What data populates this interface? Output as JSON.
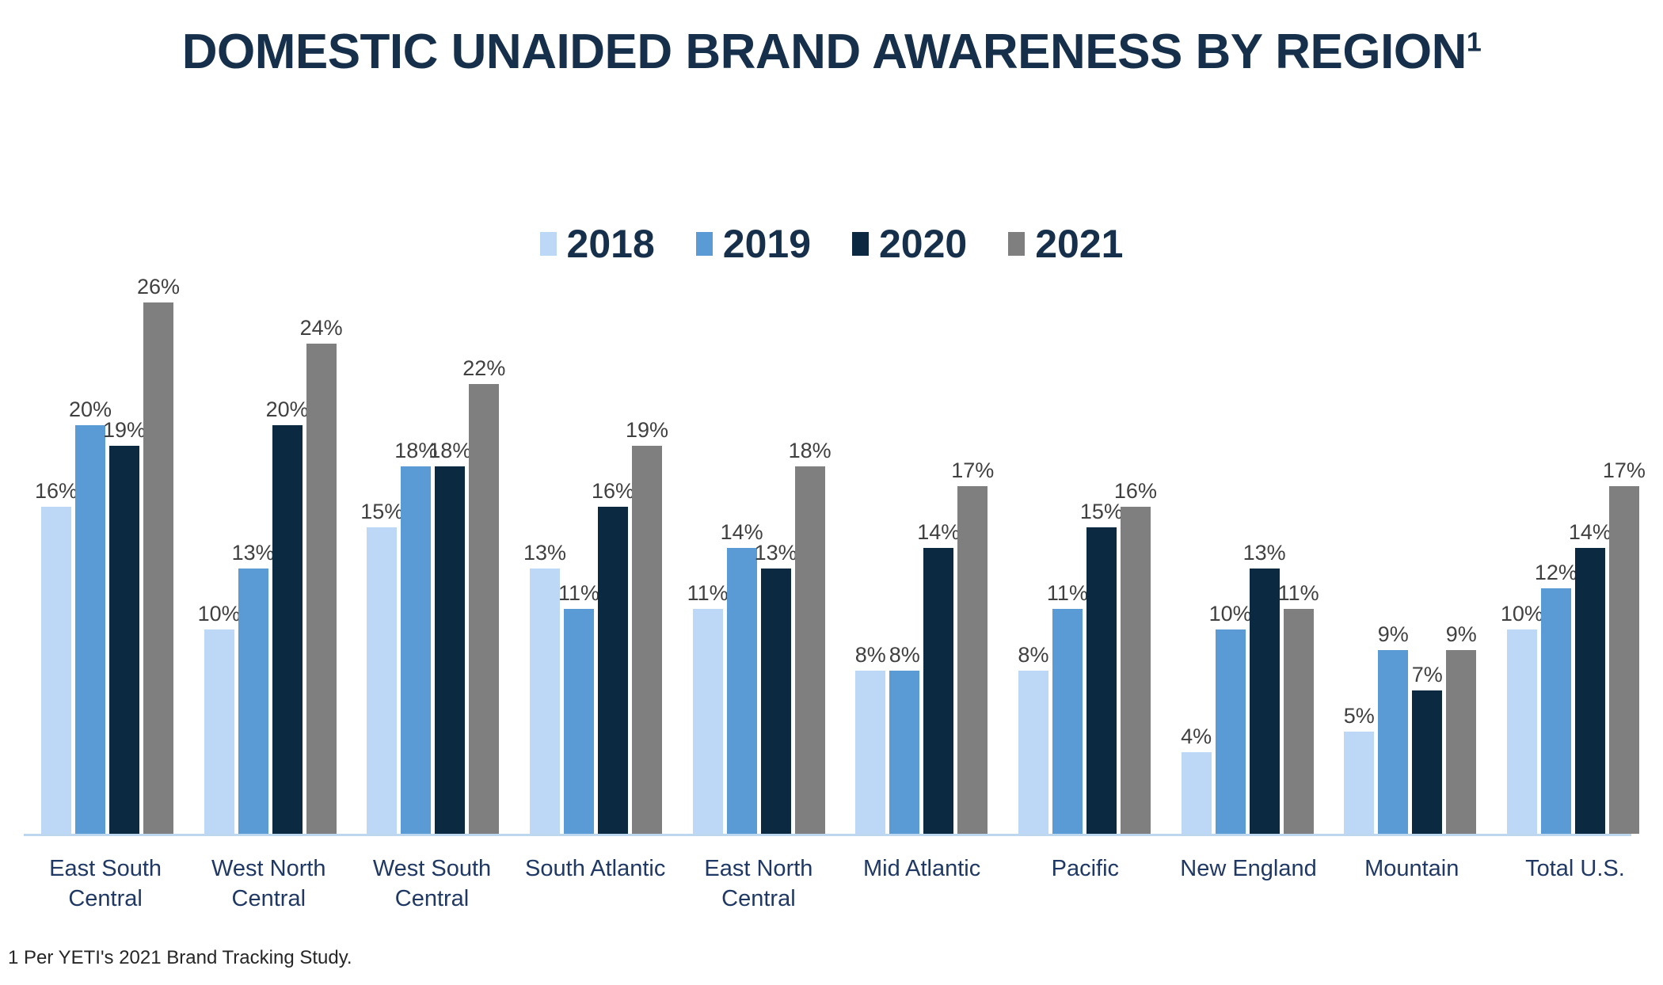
{
  "title": {
    "text": "DOMESTIC UNAIDED BRAND AWARENESS BY REGION",
    "superscript": "1"
  },
  "footnote": "1 Per YETI's 2021 Brand Tracking Study.",
  "colors": {
    "title_text": "#16304b",
    "data_label_text": "#404040",
    "region_label_text": "#1f3864",
    "axis_line": "#bdd7ee",
    "series_2018": "#bdd8f6",
    "series_2019": "#5b9bd5",
    "series_2020": "#0b2a42",
    "series_2021": "#7f7f7f"
  },
  "chart_data": {
    "type": "bar",
    "title": "DOMESTIC UNAIDED BRAND AWARENESS BY REGION",
    "categories": [
      "East South Central",
      "West North Central",
      "West South Central",
      "South Atlantic",
      "East North Central",
      "Mid Atlantic",
      "Pacific",
      "New England",
      "Mountain",
      "Total U.S."
    ],
    "series": [
      {
        "name": "2018",
        "color": "#bdd8f6",
        "values": [
          16,
          10,
          15,
          13,
          11,
          8,
          8,
          4,
          5,
          10
        ]
      },
      {
        "name": "2019",
        "color": "#5b9bd5",
        "values": [
          20,
          13,
          18,
          11,
          14,
          8,
          11,
          10,
          9,
          12
        ]
      },
      {
        "name": "2020",
        "color": "#0b2a42",
        "values": [
          19,
          20,
          18,
          16,
          13,
          14,
          15,
          13,
          7,
          14
        ]
      },
      {
        "name": "2021",
        "color": "#7f7f7f",
        "values": [
          26,
          24,
          22,
          19,
          18,
          17,
          16,
          11,
          9,
          17
        ]
      }
    ],
    "value_suffix": "%",
    "xlabel": "",
    "ylabel": "",
    "ylim": [
      0,
      26
    ],
    "grid": false,
    "y_axis_visible": false,
    "legend_position": "top-center",
    "data_labels": "above-bars"
  }
}
